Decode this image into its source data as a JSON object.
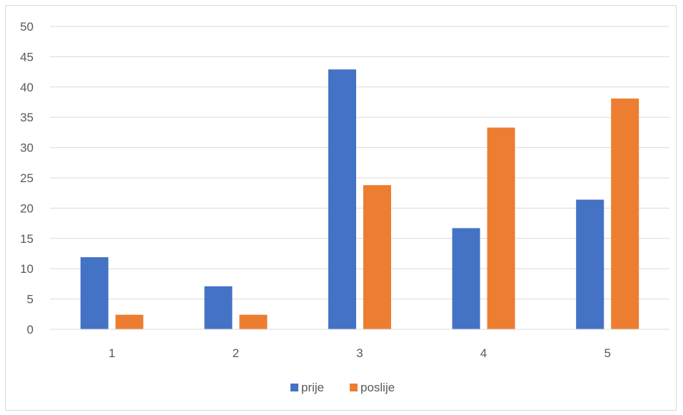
{
  "chart_data": {
    "type": "bar",
    "categories": [
      "1",
      "2",
      "3",
      "4",
      "5"
    ],
    "series": [
      {
        "name": "prije",
        "values": [
          11.9,
          7.1,
          42.9,
          16.7,
          21.4
        ],
        "color": "#4472C4"
      },
      {
        "name": "poslije",
        "values": [
          2.4,
          2.4,
          23.8,
          33.3,
          38.1
        ],
        "color": "#ED7D31"
      }
    ],
    "title": "",
    "xlabel": "",
    "ylabel": "",
    "ylim": [
      0,
      50
    ],
    "yticks": [
      "0",
      "5",
      "10",
      "15",
      "20",
      "25",
      "30",
      "35",
      "40",
      "45",
      "50"
    ],
    "grid": true,
    "legend_position": "bottom"
  }
}
